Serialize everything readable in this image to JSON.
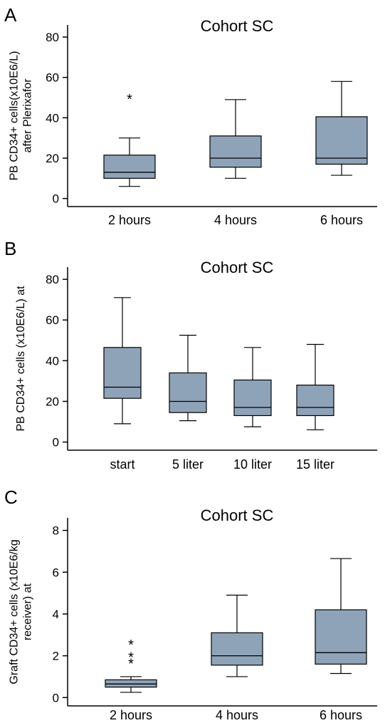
{
  "chart_data": [
    {
      "type": "box",
      "panel": "A",
      "title": "Cohort SC",
      "ylabel": "PB CD34+ cells(x10E6/L) after Plerixafor",
      "ylabel_lines": [
        "PB CD34+ cells(x10E6/L)",
        "after Plerixafor"
      ],
      "xlabel": "",
      "ylim": [
        -4,
        86
      ],
      "yticks": [
        0,
        20,
        40,
        60,
        80
      ],
      "categories": [
        "2 hours",
        "4 hours",
        "6 hours"
      ],
      "boxes": [
        {
          "min": 6,
          "q1": 10,
          "median": 13,
          "q3": 21.5,
          "max": 30,
          "outliers": [
            50
          ]
        },
        {
          "min": 10,
          "q1": 15.5,
          "median": 20,
          "q3": 31,
          "max": 49,
          "outliers": []
        },
        {
          "min": 11.5,
          "q1": 17,
          "median": 20,
          "q3": 40.5,
          "max": 58,
          "outliers": []
        }
      ]
    },
    {
      "type": "box",
      "panel": "B",
      "title": "Cohort SC",
      "ylabel": "PB CD34+ cells (x10E6/L) at",
      "ylabel_lines": [
        "PB CD34+ cells (x10E6/L) at"
      ],
      "xlabel": "",
      "ylim": [
        -4,
        86
      ],
      "yticks": [
        0,
        20,
        40,
        60,
        80
      ],
      "categories": [
        "start",
        "5 liter",
        "10 liter",
        "15 liter"
      ],
      "boxes": [
        {
          "min": 9,
          "q1": 21.5,
          "median": 27,
          "q3": 46.5,
          "max": 71,
          "outliers": []
        },
        {
          "min": 10.5,
          "q1": 14.5,
          "median": 20,
          "q3": 34,
          "max": 52.5,
          "outliers": []
        },
        {
          "min": 7.5,
          "q1": 13,
          "median": 17,
          "q3": 30.5,
          "max": 46.5,
          "outliers": []
        },
        {
          "min": 6,
          "q1": 13,
          "median": 17,
          "q3": 28,
          "max": 48,
          "outliers": []
        }
      ]
    },
    {
      "type": "box",
      "panel": "C",
      "title": "Cohort SC",
      "ylabel": "Graft CD34+ cells (x10E6/kg receiver) at",
      "ylabel_lines": [
        "Graft CD34+ cells (x10E6/kg",
        "receiver) at"
      ],
      "xlabel": "",
      "ylim": [
        -0.4,
        8.6
      ],
      "yticks": [
        0,
        2,
        4,
        6,
        8
      ],
      "categories": [
        "2 hours",
        "4 hours",
        "6 hours"
      ],
      "boxes": [
        {
          "min": 0.25,
          "q1": 0.5,
          "median": 0.65,
          "q3": 0.85,
          "max": 1.0,
          "outliers": [
            1.7,
            2.0,
            2.6
          ]
        },
        {
          "min": 1.0,
          "q1": 1.55,
          "median": 2.0,
          "q3": 3.1,
          "max": 4.9,
          "outliers": []
        },
        {
          "min": 1.15,
          "q1": 1.6,
          "median": 2.15,
          "q3": 4.2,
          "max": 6.65,
          "outliers": []
        }
      ]
    }
  ]
}
